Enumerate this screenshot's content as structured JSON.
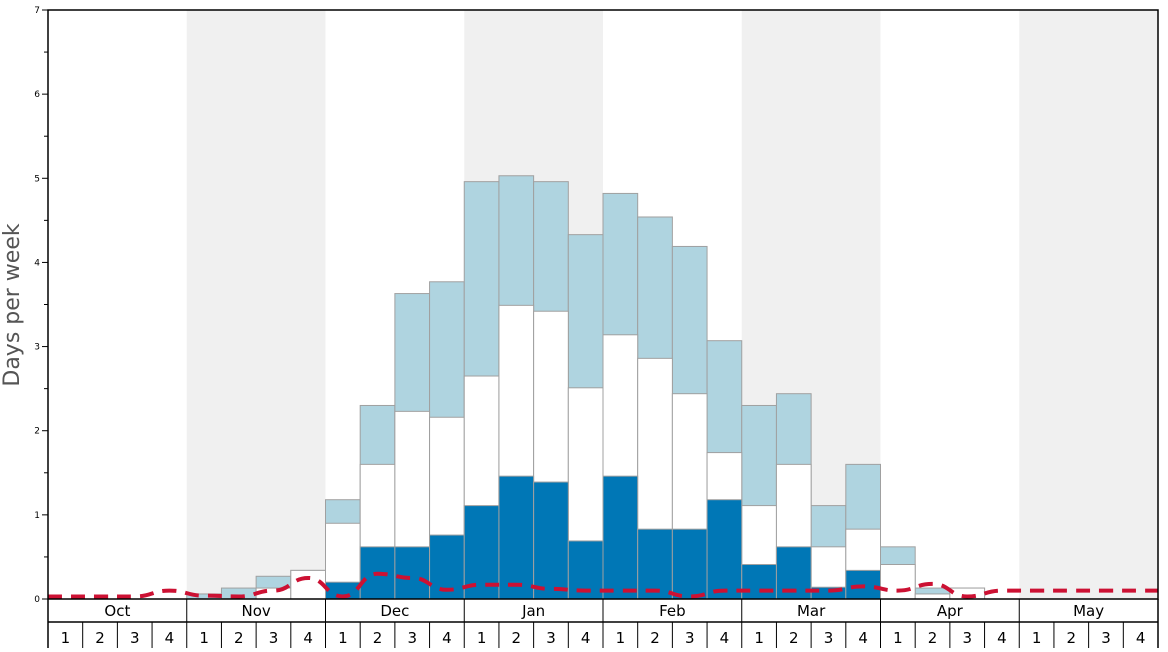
{
  "chart_data": {
    "type": "bar",
    "ylabel": "Days per week",
    "ylim": [
      0,
      7
    ],
    "y_ticks": [
      "0",
      "1",
      "2",
      "3",
      "4",
      "5",
      "6",
      "7"
    ],
    "months": [
      "Oct",
      "Nov",
      "Dec",
      "Jan",
      "Feb",
      "Mar",
      "Apr",
      "May"
    ],
    "weeks": [
      "1",
      "2",
      "3",
      "4"
    ],
    "categories": [
      "Oct 1",
      "Oct 2",
      "Oct 3",
      "Oct 4",
      "Nov 1",
      "Nov 2",
      "Nov 3",
      "Nov 4",
      "Dec 1",
      "Dec 2",
      "Dec 3",
      "Dec 4",
      "Jan 1",
      "Jan 2",
      "Jan 3",
      "Jan 4",
      "Feb 1",
      "Feb 2",
      "Feb 3",
      "Feb 4",
      "Mar 1",
      "Mar 2",
      "Mar 3",
      "Mar 4",
      "Apr 1",
      "Apr 2",
      "Apr 3",
      "Apr 4",
      "May 1",
      "May 2",
      "May 3",
      "May 4"
    ],
    "series": [
      {
        "color": "#0077b6",
        "values": [
          0,
          0,
          0,
          0,
          0,
          0,
          0,
          0,
          0.2,
          0.62,
          0.62,
          0.76,
          1.11,
          1.46,
          1.39,
          0.69,
          1.46,
          0.83,
          0.83,
          1.18,
          0.41,
          0.62,
          0.14,
          0.34,
          0,
          0,
          0,
          0,
          0,
          0,
          0,
          0
        ]
      },
      {
        "color": "#ffffff",
        "values": [
          0,
          0,
          0,
          0,
          0,
          0,
          0.13,
          0.34,
          0.9,
          1.6,
          2.23,
          2.16,
          2.65,
          3.49,
          3.42,
          2.51,
          3.14,
          2.86,
          2.44,
          1.74,
          1.11,
          1.6,
          0.62,
          0.83,
          0.41,
          0.06,
          0.13,
          0,
          0,
          0,
          0,
          0
        ]
      },
      {
        "color": "#afd4e0",
        "values": [
          0,
          0,
          0,
          0,
          0.06,
          0.13,
          0.27,
          0.34,
          1.18,
          2.3,
          3.63,
          3.77,
          4.96,
          5.03,
          4.96,
          4.33,
          4.82,
          4.54,
          4.19,
          3.07,
          2.3,
          2.44,
          1.11,
          1.6,
          0.62,
          0.13,
          0.13,
          0,
          0,
          0,
          0,
          0
        ]
      }
    ],
    "dashed_line": {
      "color": "#cc1133",
      "values": [
        0.03,
        0.03,
        0.03,
        0.1,
        0.04,
        0.03,
        0.1,
        0.25,
        0.03,
        0.3,
        0.25,
        0.11,
        0.17,
        0.17,
        0.12,
        0.1,
        0.1,
        0.1,
        0.03,
        0.1,
        0.1,
        0.1,
        0.1,
        0.15,
        0.1,
        0.18,
        0.03,
        0.1,
        0.1,
        0.1,
        0.1,
        0.1
      ]
    },
    "shaded_months": [
      "Nov",
      "Jan",
      "Mar",
      "May"
    ],
    "shade_color": "#f0f0f0",
    "bar_outline": "#a0a0a0"
  }
}
